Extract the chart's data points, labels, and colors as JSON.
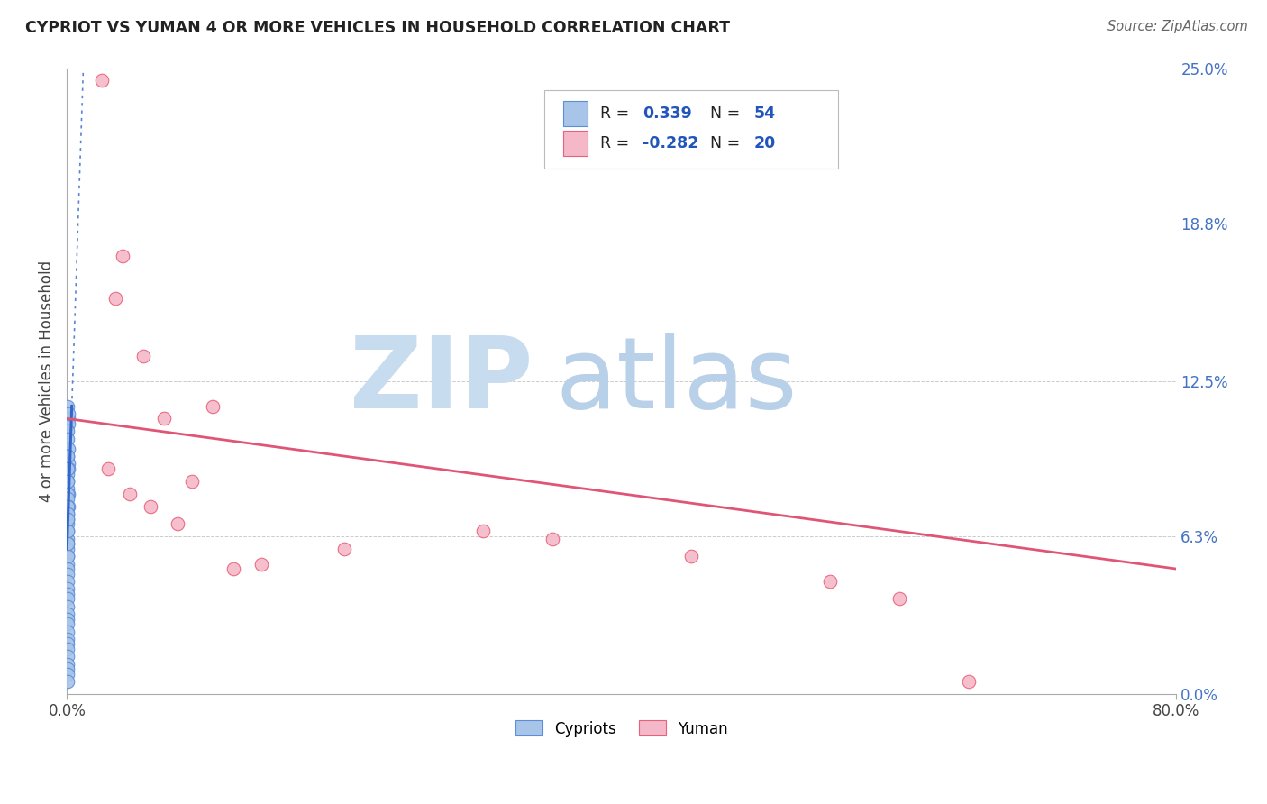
{
  "title": "CYPRIOT VS YUMAN 4 OR MORE VEHICLES IN HOUSEHOLD CORRELATION CHART",
  "source": "Source: ZipAtlas.com",
  "ylabel": "4 or more Vehicles in Household",
  "ytick_values": [
    0.0,
    6.3,
    12.5,
    18.8,
    25.0
  ],
  "xlim": [
    0.0,
    80.0
  ],
  "ylim": [
    0.0,
    25.0
  ],
  "legend_R1": "0.339",
  "legend_N1": "54",
  "legend_R2": "-0.282",
  "legend_N2": "20",
  "blue_scatter_color": "#A8C4E8",
  "blue_scatter_edge": "#5B8DD9",
  "pink_scatter_color": "#F5B8C8",
  "pink_scatter_edge": "#E8607A",
  "blue_line_color": "#3366CC",
  "pink_line_color": "#E05575",
  "watermark_zip_color": "#C8DCF0",
  "watermark_atlas_color": "#B8D0E8",
  "background_color": "#FFFFFF",
  "cypriot_x": [
    0.05,
    0.08,
    0.1,
    0.12,
    0.05,
    0.07,
    0.09,
    0.06,
    0.08,
    0.1,
    0.05,
    0.06,
    0.07,
    0.08,
    0.05,
    0.06,
    0.04,
    0.05,
    0.07,
    0.08,
    0.05,
    0.06,
    0.04,
    0.05,
    0.04,
    0.05,
    0.04,
    0.05,
    0.04,
    0.04,
    0.05,
    0.06,
    0.04,
    0.04,
    0.05,
    0.04,
    0.04,
    0.04,
    0.04,
    0.04,
    0.04,
    0.04,
    0.04,
    0.05,
    0.04,
    0.04,
    0.04,
    0.04,
    0.04,
    0.04,
    0.04,
    0.04,
    0.04,
    0.04
  ],
  "cypriot_y": [
    11.5,
    11.0,
    10.8,
    11.2,
    10.5,
    10.2,
    9.8,
    9.5,
    9.2,
    9.0,
    8.8,
    8.5,
    8.2,
    8.0,
    9.5,
    9.0,
    8.5,
    8.0,
    7.8,
    7.5,
    7.2,
    7.0,
    6.8,
    6.5,
    6.2,
    6.0,
    5.8,
    5.5,
    5.2,
    5.0,
    7.5,
    7.2,
    4.8,
    4.5,
    4.2,
    4.0,
    3.8,
    3.5,
    3.2,
    3.0,
    2.8,
    2.5,
    2.2,
    2.0,
    1.8,
    1.5,
    1.2,
    1.0,
    0.8,
    0.5,
    6.5,
    7.0,
    5.5,
    6.0
  ],
  "yuman_x": [
    2.5,
    3.5,
    4.0,
    5.5,
    7.0,
    9.0,
    10.5,
    14.0,
    20.0,
    30.0,
    45.0,
    60.0,
    65.0,
    3.0,
    4.5,
    6.0,
    8.0,
    12.0,
    35.0,
    55.0
  ],
  "yuman_y": [
    24.5,
    15.8,
    17.5,
    13.5,
    11.0,
    8.5,
    11.5,
    5.2,
    5.8,
    6.5,
    5.5,
    3.8,
    0.5,
    9.0,
    8.0,
    7.5,
    6.8,
    5.0,
    6.2,
    4.5
  ],
  "blue_trendline_x0": 0.0,
  "blue_trendline_y0": 5.8,
  "blue_trendline_x1": 0.35,
  "blue_trendline_y1": 11.5,
  "blue_dotted_x0": 0.0,
  "blue_dotted_y0": 5.8,
  "blue_dotted_x1": 80.0,
  "blue_dotted_y1": 25.0,
  "pink_trendline_y_at_0": 11.0,
  "pink_trendline_y_at_80": 5.0
}
